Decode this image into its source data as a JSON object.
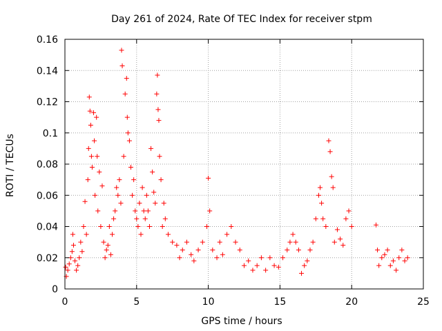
{
  "chart_data": {
    "type": "scatter",
    "title": "Day 261 of 2024, Rate Of TEC Index for receiver stpm",
    "xlabel": "GPS time / hours",
    "ylabel": "ROTI / TECUs",
    "xlim": [
      0,
      25
    ],
    "ylim": [
      0,
      0.16
    ],
    "x_ticks": [
      0,
      5,
      10,
      15,
      20,
      25
    ],
    "x_tick_labels": [
      "0",
      "5",
      "10",
      "15",
      "20",
      "25"
    ],
    "y_ticks": [
      0,
      0.02,
      0.04,
      0.06,
      0.08,
      0.1,
      0.12,
      0.14,
      0.16
    ],
    "y_tick_labels": [
      "0",
      "0.02",
      "0.04",
      "0.06",
      "0.08",
      "0.1",
      "0.12",
      "0.14",
      "0.16"
    ],
    "grid": true,
    "marker": "+",
    "color": "#ff0000",
    "series": [
      {
        "name": "ROTI",
        "points": [
          [
            0.05,
            0.014
          ],
          [
            0.1,
            0.008
          ],
          [
            0.2,
            0.012
          ],
          [
            0.3,
            0.016
          ],
          [
            0.4,
            0.02
          ],
          [
            0.5,
            0.024
          ],
          [
            0.55,
            0.035
          ],
          [
            0.6,
            0.028
          ],
          [
            0.7,
            0.018
          ],
          [
            0.8,
            0.012
          ],
          [
            0.9,
            0.015
          ],
          [
            1.0,
            0.02
          ],
          [
            1.1,
            0.03
          ],
          [
            1.2,
            0.024
          ],
          [
            1.3,
            0.04
          ],
          [
            1.4,
            0.056
          ],
          [
            1.5,
            0.035
          ],
          [
            1.6,
            0.07
          ],
          [
            1.65,
            0.09
          ],
          [
            1.7,
            0.123
          ],
          [
            1.75,
            0.114
          ],
          [
            1.8,
            0.105
          ],
          [
            1.85,
            0.085
          ],
          [
            1.9,
            0.078
          ],
          [
            2.0,
            0.113
          ],
          [
            2.05,
            0.095
          ],
          [
            2.1,
            0.06
          ],
          [
            2.2,
            0.11
          ],
          [
            2.25,
            0.085
          ],
          [
            2.3,
            0.05
          ],
          [
            2.4,
            0.075
          ],
          [
            2.5,
            0.04
          ],
          [
            2.6,
            0.066
          ],
          [
            2.7,
            0.03
          ],
          [
            2.8,
            0.02
          ],
          [
            2.9,
            0.025
          ],
          [
            3.0,
            0.028
          ],
          [
            3.1,
            0.04
          ],
          [
            3.2,
            0.022
          ],
          [
            3.3,
            0.035
          ],
          [
            3.4,
            0.045
          ],
          [
            3.5,
            0.05
          ],
          [
            3.6,
            0.065
          ],
          [
            3.7,
            0.06
          ],
          [
            3.8,
            0.07
          ],
          [
            3.9,
            0.055
          ],
          [
            3.95,
            0.153
          ],
          [
            4.0,
            0.143
          ],
          [
            4.1,
            0.085
          ],
          [
            4.2,
            0.125
          ],
          [
            4.3,
            0.135
          ],
          [
            4.35,
            0.11
          ],
          [
            4.4,
            0.1
          ],
          [
            4.5,
            0.095
          ],
          [
            4.6,
            0.078
          ],
          [
            4.7,
            0.06
          ],
          [
            4.8,
            0.07
          ],
          [
            4.9,
            0.05
          ],
          [
            5.0,
            0.045
          ],
          [
            5.1,
            0.04
          ],
          [
            5.2,
            0.055
          ],
          [
            5.3,
            0.035
          ],
          [
            5.4,
            0.065
          ],
          [
            5.5,
            0.05
          ],
          [
            5.6,
            0.045
          ],
          [
            5.7,
            0.06
          ],
          [
            5.8,
            0.05
          ],
          [
            5.9,
            0.04
          ],
          [
            6.0,
            0.09
          ],
          [
            6.1,
            0.075
          ],
          [
            6.2,
            0.062
          ],
          [
            6.3,
            0.055
          ],
          [
            6.4,
            0.125
          ],
          [
            6.45,
            0.137
          ],
          [
            6.5,
            0.115
          ],
          [
            6.55,
            0.108
          ],
          [
            6.6,
            0.085
          ],
          [
            6.7,
            0.07
          ],
          [
            6.8,
            0.04
          ],
          [
            6.9,
            0.055
          ],
          [
            7.0,
            0.045
          ],
          [
            7.2,
            0.035
          ],
          [
            7.5,
            0.03
          ],
          [
            7.8,
            0.028
          ],
          [
            8.0,
            0.02
          ],
          [
            8.2,
            0.025
          ],
          [
            8.5,
            0.03
          ],
          [
            8.8,
            0.022
          ],
          [
            9.0,
            0.018
          ],
          [
            9.3,
            0.025
          ],
          [
            9.6,
            0.03
          ],
          [
            9.9,
            0.04
          ],
          [
            10.0,
            0.071
          ],
          [
            10.1,
            0.05
          ],
          [
            10.3,
            0.025
          ],
          [
            10.6,
            0.02
          ],
          [
            10.8,
            0.03
          ],
          [
            11.0,
            0.022
          ],
          [
            11.3,
            0.035
          ],
          [
            11.6,
            0.04
          ],
          [
            11.9,
            0.03
          ],
          [
            12.2,
            0.025
          ],
          [
            12.5,
            0.015
          ],
          [
            12.8,
            0.018
          ],
          [
            13.1,
            0.012
          ],
          [
            13.4,
            0.015
          ],
          [
            13.7,
            0.02
          ],
          [
            14.0,
            0.012
          ],
          [
            14.3,
            0.02
          ],
          [
            14.6,
            0.015
          ],
          [
            14.9,
            0.014
          ],
          [
            15.2,
            0.02
          ],
          [
            15.5,
            0.025
          ],
          [
            15.7,
            0.03
          ],
          [
            15.9,
            0.035
          ],
          [
            16.1,
            0.03
          ],
          [
            16.3,
            0.025
          ],
          [
            16.5,
            0.01
          ],
          [
            16.7,
            0.015
          ],
          [
            16.9,
            0.018
          ],
          [
            17.1,
            0.025
          ],
          [
            17.3,
            0.03
          ],
          [
            17.5,
            0.045
          ],
          [
            17.7,
            0.06
          ],
          [
            17.8,
            0.065
          ],
          [
            17.9,
            0.055
          ],
          [
            18.0,
            0.045
          ],
          [
            18.2,
            0.04
          ],
          [
            18.4,
            0.095
          ],
          [
            18.5,
            0.088
          ],
          [
            18.6,
            0.072
          ],
          [
            18.7,
            0.065
          ],
          [
            18.8,
            0.03
          ],
          [
            19.0,
            0.038
          ],
          [
            19.2,
            0.032
          ],
          [
            19.4,
            0.028
          ],
          [
            19.6,
            0.045
          ],
          [
            19.8,
            0.05
          ],
          [
            20.0,
            0.04
          ],
          [
            21.7,
            0.041
          ],
          [
            21.8,
            0.025
          ],
          [
            21.9,
            0.015
          ],
          [
            22.1,
            0.02
          ],
          [
            22.3,
            0.022
          ],
          [
            22.5,
            0.025
          ],
          [
            22.7,
            0.015
          ],
          [
            22.9,
            0.018
          ],
          [
            23.1,
            0.012
          ],
          [
            23.3,
            0.02
          ],
          [
            23.5,
            0.025
          ],
          [
            23.7,
            0.018
          ],
          [
            23.9,
            0.02
          ]
        ]
      }
    ]
  }
}
